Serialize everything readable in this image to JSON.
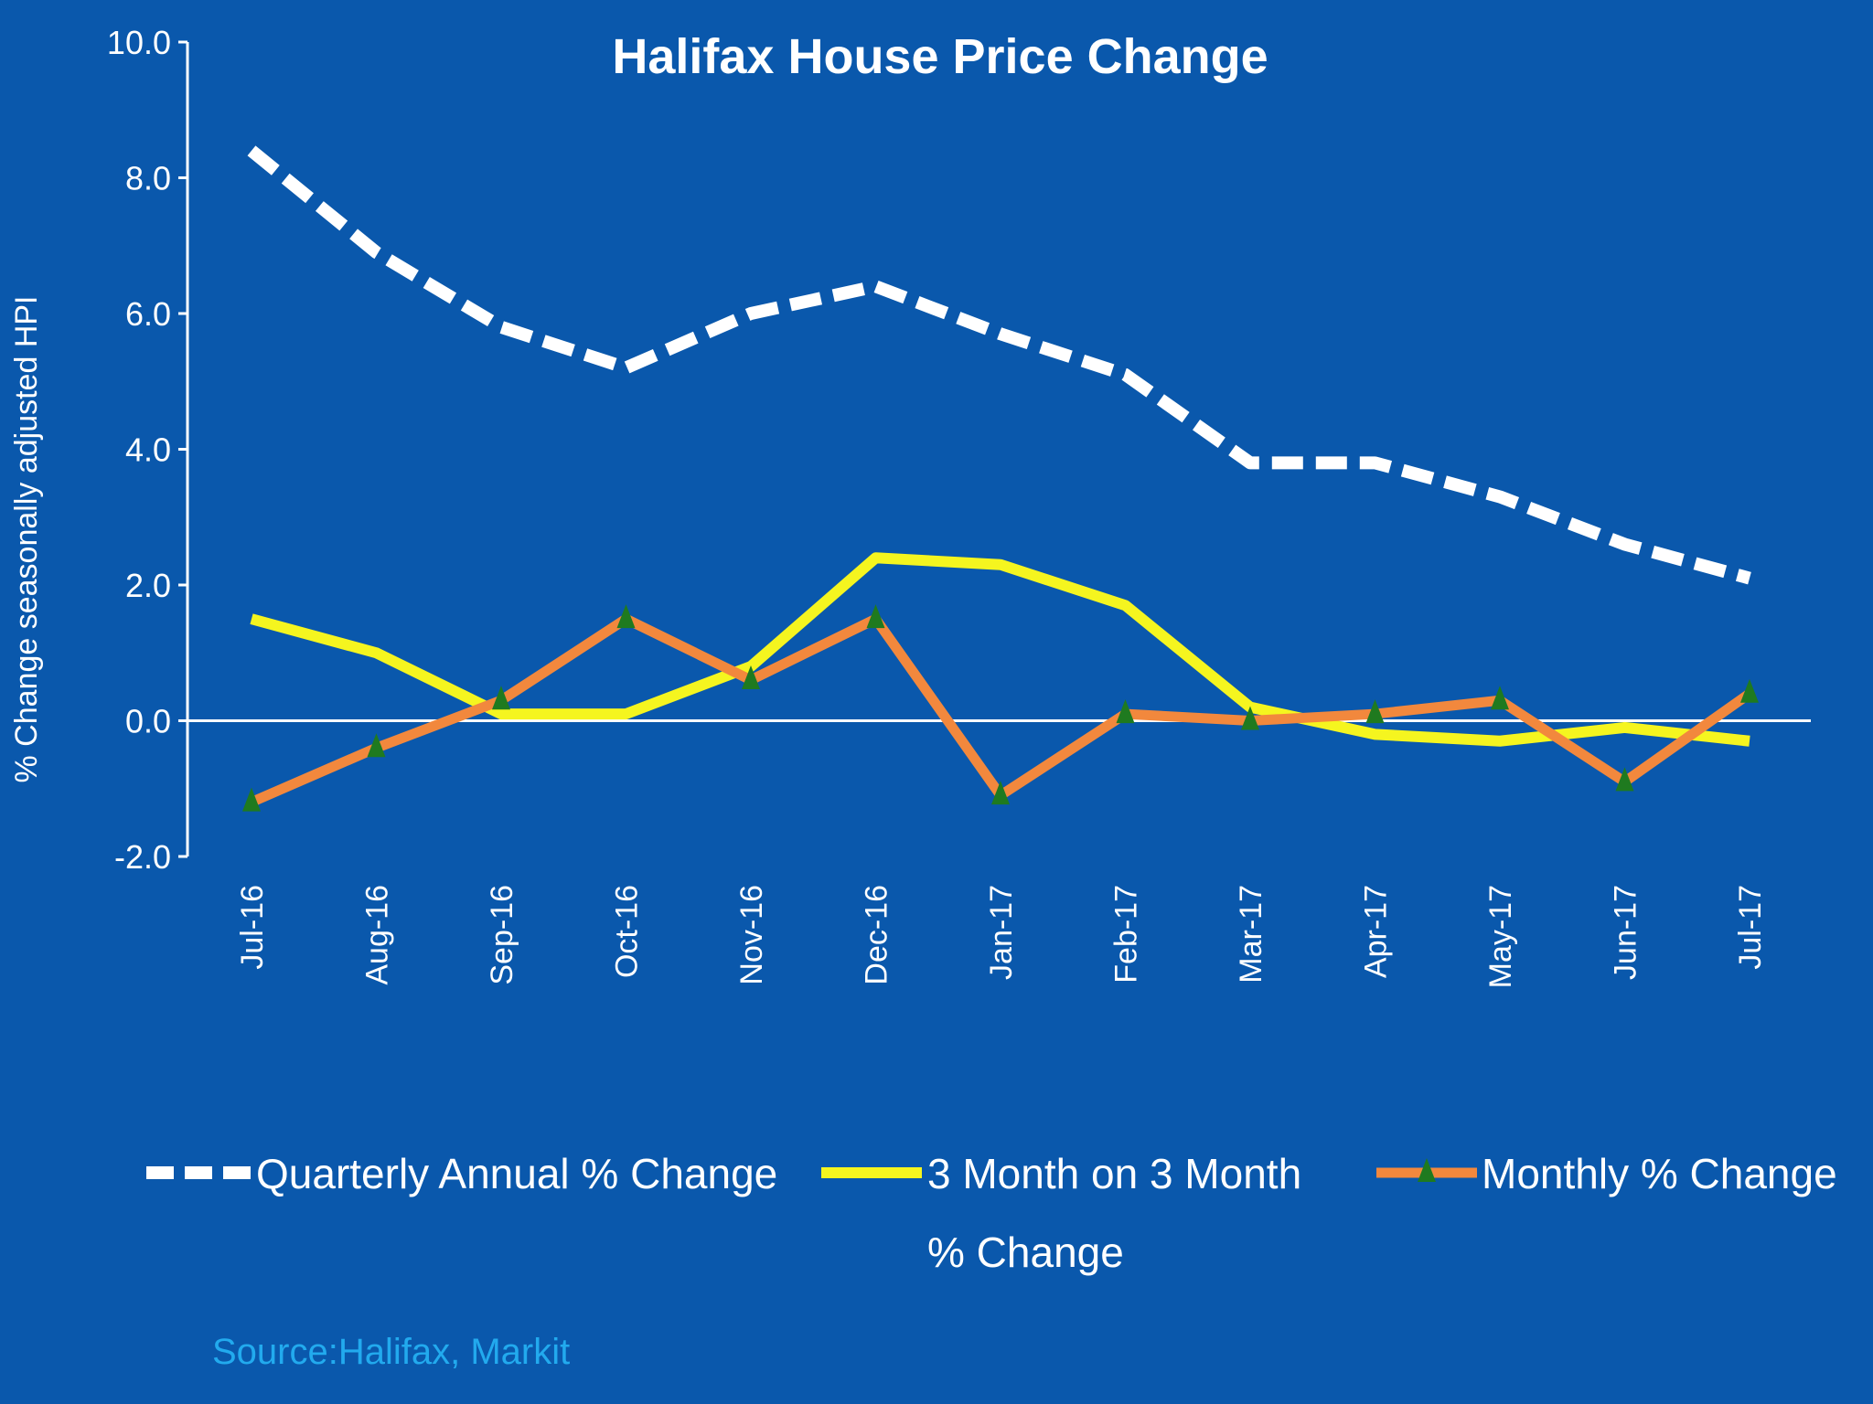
{
  "colors": {
    "background": "#0a58ac",
    "text": "#ffffff",
    "axis": "#ffffff",
    "source": "#22aaee",
    "quarterly_annual": "#ffffff",
    "three_month": "#f5f51f",
    "monthly": "#f2883d",
    "monthly_marker": "#1f7a1f"
  },
  "source_text": "Source:Halifax, Markit",
  "chart_data": {
    "type": "line",
    "title": "Halifax House Price Change",
    "xlabel": "",
    "ylabel": "% Change seasonally adjusted HPI",
    "ylim": [
      -2.0,
      10.0
    ],
    "yticks": [
      "10.0",
      "8.0",
      "6.0",
      "4.0",
      "2.0",
      "0.0",
      "-2.0"
    ],
    "ytick_values": [
      10,
      8,
      6,
      4,
      2,
      0,
      -2
    ],
    "categories": [
      "Jul-16",
      "Aug-16",
      "Sep-16",
      "Oct-16",
      "Nov-16",
      "Dec-16",
      "Jan-17",
      "Feb-17",
      "Mar-17",
      "Apr-17",
      "May-17",
      "Jun-17",
      "Jul-17"
    ],
    "grid": false,
    "legend": "bottom",
    "series": [
      {
        "key": "quarterly_annual",
        "name": "Quarterly Annual % Change",
        "style": "dashed",
        "values": [
          8.4,
          6.9,
          5.8,
          5.2,
          6.0,
          6.4,
          5.7,
          5.1,
          3.8,
          3.8,
          3.3,
          2.6,
          2.1
        ]
      },
      {
        "key": "three_month",
        "name_lines": [
          "3 Month on 3 Month",
          "% Change"
        ],
        "style": "solid",
        "values": [
          1.5,
          1.0,
          0.1,
          0.1,
          0.8,
          2.4,
          2.3,
          1.7,
          0.2,
          -0.2,
          -0.3,
          -0.1,
          -0.3
        ]
      },
      {
        "key": "monthly",
        "name": "Monthly % Change",
        "style": "solid-markers",
        "marker": "triangle",
        "values": [
          -1.2,
          -0.4,
          0.3,
          1.5,
          0.6,
          1.5,
          -1.1,
          0.1,
          0.0,
          0.1,
          0.3,
          -0.9,
          0.4
        ]
      }
    ]
  }
}
